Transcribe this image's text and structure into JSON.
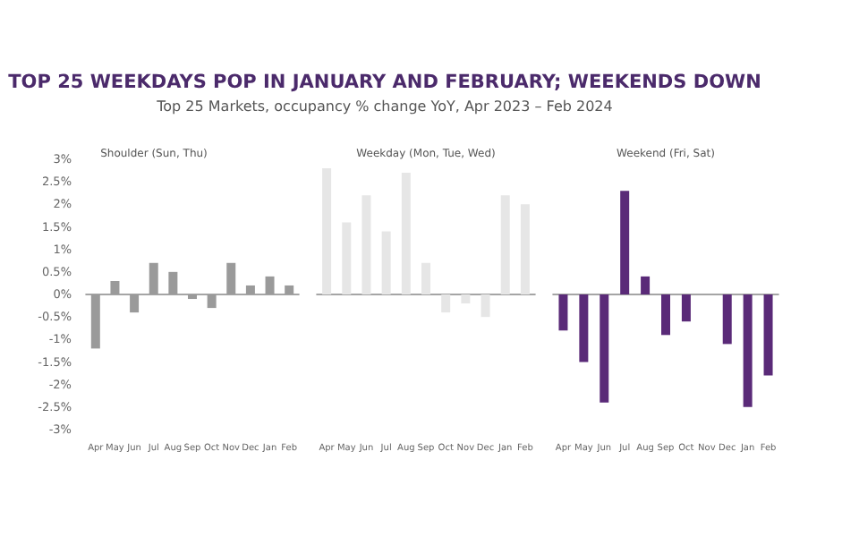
{
  "chart_data": [
    {
      "type": "bar",
      "title": "Shoulder (Sun, Thu)",
      "annotations": [
        "TOP 25 WEEKDAYS POP IN JANUARY AND FEBRUARY; WEEKENDS DOWN",
        "Top 25 Markets, occupancy % change YoY, Apr 2023 – Feb 2024"
      ],
      "categories": [
        "Apr",
        "May",
        "Jun",
        "Jul",
        "Aug",
        "Sep",
        "Oct",
        "Nov",
        "Dec",
        "Jan",
        "Feb"
      ],
      "values": [
        -1.2,
        0.3,
        -0.4,
        0.7,
        0.5,
        -0.1,
        -0.3,
        0.7,
        0.2,
        0.4,
        0.2
      ],
      "color": "#9a9a9a",
      "ylim": [
        -3,
        3
      ],
      "yticks": [
        {
          "value": -3,
          "label": "-3%"
        },
        {
          "value": -2.5,
          "label": "-2.5%"
        },
        {
          "value": -2,
          "label": "-2%"
        },
        {
          "value": -1.5,
          "label": "-1.5%"
        },
        {
          "value": -1,
          "label": "-1%"
        },
        {
          "value": -0.5,
          "label": "-0.5%"
        },
        {
          "value": 0,
          "label": "0%"
        },
        {
          "value": 0.5,
          "label": "0.5%"
        },
        {
          "value": 1,
          "label": "1%"
        },
        {
          "value": 1.5,
          "label": "1.5%"
        },
        {
          "value": 2,
          "label": "2%"
        },
        {
          "value": 2.5,
          "label": "2.5%"
        },
        {
          "value": 3,
          "label": "3%"
        }
      ]
    },
    {
      "type": "bar",
      "title": "Weekday (Mon, Tue, Wed)",
      "categories": [
        "Apr",
        "May",
        "Jun",
        "Jul",
        "Aug",
        "Sep",
        "Oct",
        "Nov",
        "Dec",
        "Jan",
        "Feb"
      ],
      "values": [
        2.8,
        1.6,
        2.2,
        1.4,
        2.7,
        0.7,
        -0.4,
        -0.2,
        -0.5,
        2.2,
        2.0
      ],
      "color": "#e6e6e6",
      "ylim": [
        -3,
        3
      ],
      "tick_labels": "x"
    },
    {
      "type": "bar",
      "title": "Weekend (Fri, Sat)",
      "categories": [
        "Apr",
        "May",
        "Jun",
        "Jul",
        "Aug",
        "Sep",
        "Oct",
        "Nov",
        "Dec",
        "Jan",
        "Feb"
      ],
      "values": [
        -0.8,
        -1.5,
        -2.4,
        2.3,
        0.4,
        -0.9,
        -0.6,
        null,
        -1.1,
        -2.5,
        -1.8
      ],
      "color": "#5a2a78",
      "ylim": [
        -3,
        3
      ],
      "tick_labels": "x"
    }
  ]
}
